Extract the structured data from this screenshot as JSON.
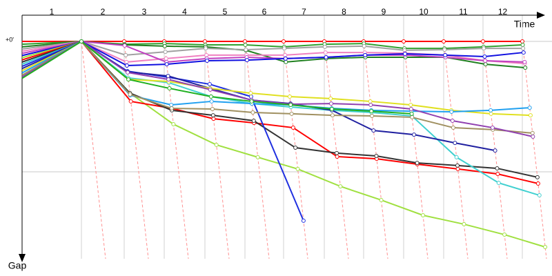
{
  "chart_data": {
    "type": "line",
    "x_label": "Time",
    "y_label": "Gap",
    "categories": [
      "1",
      "2",
      "3",
      "4",
      "5",
      "6",
      "7",
      "8",
      "9",
      "10",
      "11",
      "12"
    ],
    "ylim": [
      0,
      100
    ],
    "yticks": [
      {
        "value": 0,
        "label": "+0'"
      },
      {
        "value": 60,
        "label": null
      }
    ],
    "grid": true,
    "series": [
      {
        "color": "#ff0000",
        "start": 0,
        "values": [
          0,
          0,
          0,
          0,
          0,
          0,
          0,
          0,
          0,
          0,
          0,
          0
        ]
      },
      {
        "color": "#30a030",
        "start": 1.3,
        "values": [
          0,
          1.3,
          1,
          1.6,
          1.6,
          2.5,
          1.3,
          1,
          3.2,
          3.2,
          2.5,
          1.6
        ]
      },
      {
        "color": "#208020",
        "start": 2.5,
        "values": [
          0,
          1.6,
          2.2,
          2.5,
          4.1,
          9.5,
          7.9,
          7.3,
          7.3,
          7.3,
          10.5,
          12.1
        ]
      },
      {
        "color": "#a0a0a0",
        "start": 3.5,
        "values": [
          0,
          6.3,
          4.8,
          3.2,
          3.8,
          3.2,
          2.5,
          2.2,
          4.1,
          3.8,
          3.2,
          3.2
        ]
      },
      {
        "color": "#f080c0",
        "start": 4.5,
        "values": [
          0,
          9.5,
          7.9,
          6.3,
          6.3,
          6.3,
          5.1,
          5.1,
          5.4,
          6.3,
          8.9,
          10.2
        ]
      },
      {
        "color": "#c040c0",
        "start": 5.5,
        "values": [
          0,
          1.9,
          9.5,
          7.9,
          7.3,
          7.9,
          7.3,
          6.3,
          6.3,
          7.3,
          8.9,
          9.5
        ]
      },
      {
        "color": "#1010e0",
        "start": 6.5,
        "values": [
          0,
          11.1,
          10.5,
          8.9,
          8.6,
          7.9,
          7.3,
          6.3,
          5.7,
          6.3,
          7.0,
          5.1
        ]
      },
      {
        "color": "#a0e040",
        "start": 7.5,
        "values": [
          0,
          23.8,
          38.1,
          47.6,
          53.3,
          58.7,
          66.7,
          73.0,
          80.0,
          84.1,
          88.9,
          94.6
        ]
      },
      {
        "color": "#ff0000",
        "start": 8.5,
        "values": [
          0,
          27.6,
          30.8,
          35.6,
          37.5,
          39.7,
          53.0,
          54.0,
          56.5,
          58.7,
          61.0,
          65.4
        ]
      },
      {
        "color": "#333333",
        "start": 9.5,
        "values": [
          0,
          23.8,
          31.7,
          34.0,
          36.5,
          48.9,
          51.4,
          52.7,
          55.9,
          57.1,
          58.4,
          62.5
        ]
      },
      {
        "color": "#40d0d0",
        "start": 10.5,
        "values": [
          0,
          16.8,
          19.0,
          25.4,
          28.6,
          30.2,
          31.7,
          32.7,
          34.3,
          53.3,
          65.1,
          70.8
        ]
      },
      {
        "color": "#2030e0",
        "start": 11.5,
        "values": [
          0,
          13.7,
          16.5,
          19.7,
          25.4,
          82.5,
          null,
          null,
          null,
          null,
          null,
          null
        ]
      },
      {
        "color": "#2020a0",
        "start": 12.5,
        "values": [
          0,
          14.0,
          15.9,
          21.6,
          27.0,
          28.6,
          31.7,
          41.0,
          42.9,
          46.7,
          50.2,
          null
        ]
      },
      {
        "color": "#e0e020",
        "start": 13.5,
        "values": [
          0,
          17.5,
          18.4,
          21.6,
          23.8,
          25.4,
          26.3,
          27.6,
          29.2,
          31.7,
          33.3,
          34.0
        ]
      },
      {
        "color": "#20a0f0",
        "start": 14.5,
        "values": [
          0,
          24.8,
          29.2,
          27.6,
          28.6,
          29.2,
          30.8,
          31.7,
          32.1,
          32.4,
          31.7,
          30.5
        ]
      },
      {
        "color": "#a09060",
        "start": 15.5,
        "values": [
          0,
          24.4,
          30.8,
          31.1,
          32.7,
          33.3,
          34.0,
          34.3,
          34.9,
          39.7,
          40.6,
          42.2
        ]
      },
      {
        "color": "#9040b0",
        "start": 16.3,
        "values": [
          0,
          14.3,
          17.5,
          22.2,
          27.0,
          28.9,
          28.6,
          29.2,
          31.1,
          36.5,
          39.7,
          43.8
        ]
      },
      {
        "color": "#20b020",
        "start": 17.0,
        "values": [
          0,
          17.5,
          21.6,
          25.4,
          27.6,
          29.2,
          31.1,
          32.1,
          33.3,
          null,
          null,
          null
        ]
      }
    ]
  }
}
